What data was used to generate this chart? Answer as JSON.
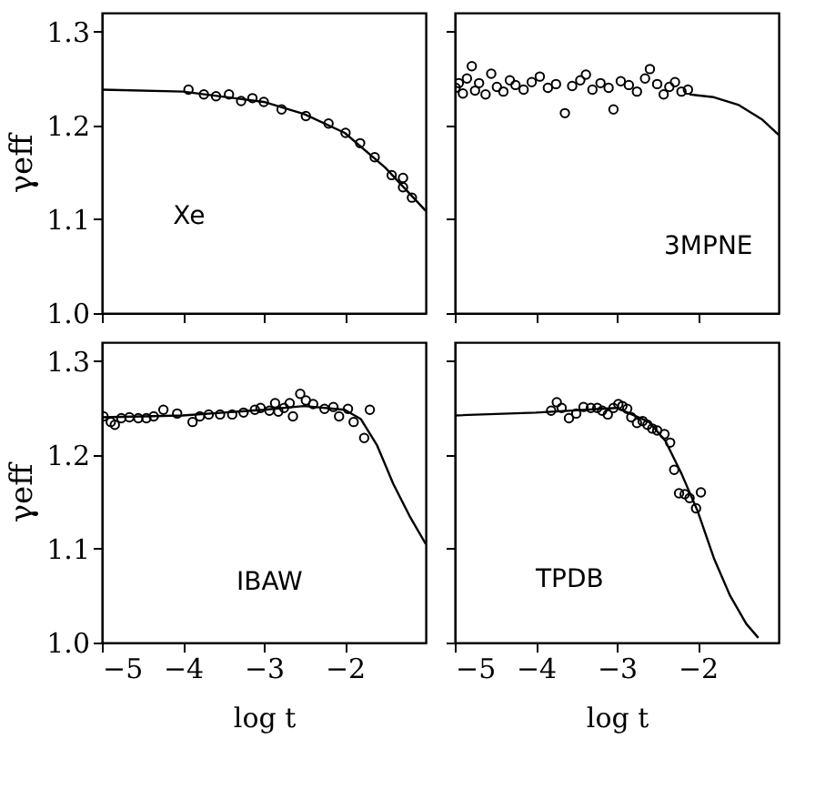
{
  "chart_data": [
    {
      "type": "scatter",
      "ylabel": "γeff",
      "annotations": [
        "Xe"
      ],
      "xlim": [
        -5,
        -1
      ],
      "ylim": [
        1.0,
        1.32
      ],
      "xticks": [
        -5,
        -4,
        -3,
        -2
      ],
      "yticks": [
        {
          "value": 1.0,
          "label": "1.0"
        },
        1.1,
        1.2,
        1.3
      ],
      "tick_labels": "y",
      "grid": false,
      "series": [
        {
          "color": "#000000",
          "marker": "circle",
          "x": [
            -3.93,
            -3.74,
            -3.59,
            -3.43,
            -3.28,
            -3.14,
            -3.0,
            -2.78,
            -2.48,
            -2.2,
            -1.99,
            -1.81,
            -1.63,
            -1.42,
            -1.28,
            -1.28,
            -1.17
          ],
          "values": [
            1.238,
            1.233,
            1.231,
            1.233,
            1.226,
            1.229,
            1.225,
            1.217,
            1.21,
            1.202,
            1.192,
            1.181,
            1.166,
            1.147,
            1.144,
            1.134,
            1.123
          ]
        },
        {
          "type": "line",
          "color": "#000000",
          "marker": "none",
          "x": [
            -5,
            -4,
            -3,
            -2.5,
            -2,
            -1.5,
            -1
          ],
          "values": [
            1.238,
            1.236,
            1.225,
            1.212,
            1.192,
            1.155,
            1.109
          ]
        }
      ]
    },
    {
      "type": "scatter",
      "annotations": [
        "3MPNE"
      ],
      "xlim": [
        -5,
        -1
      ],
      "ylim": [
        1.0,
        1.32
      ],
      "xticks": [
        -5,
        -4,
        -3,
        -2
      ],
      "yticks": [
        1.0,
        1.1,
        1.2,
        1.3
      ],
      "tick_labels": false,
      "grid": false,
      "series": [
        {
          "color": "#000000",
          "marker": "circle",
          "x": [
            -4.99,
            -4.95,
            -4.9,
            -4.85,
            -4.79,
            -4.75,
            -4.7,
            -4.62,
            -4.55,
            -4.48,
            -4.4,
            -4.32,
            -4.25,
            -4.15,
            -4.05,
            -3.95,
            -3.85,
            -3.75,
            -3.64,
            -3.55,
            -3.45,
            -3.38,
            -3.3,
            -3.2,
            -3.1,
            -3.04,
            -2.95,
            -2.85,
            -2.75,
            -2.65,
            -2.59,
            -2.5,
            -2.42,
            -2.35,
            -2.28,
            -2.2,
            -2.12
          ],
          "values": [
            1.24,
            1.245,
            1.234,
            1.25,
            1.263,
            1.237,
            1.245,
            1.233,
            1.255,
            1.241,
            1.236,
            1.248,
            1.243,
            1.238,
            1.246,
            1.252,
            1.24,
            1.244,
            1.213,
            1.242,
            1.248,
            1.254,
            1.238,
            1.245,
            1.24,
            1.217,
            1.247,
            1.243,
            1.236,
            1.25,
            1.26,
            1.244,
            1.233,
            1.241,
            1.246,
            1.236,
            1.238
          ]
        },
        {
          "type": "line",
          "color": "#000000",
          "marker": "none",
          "x": [
            -2.1,
            -1.8,
            -1.5,
            -1.2,
            -1
          ],
          "values": [
            1.233,
            1.23,
            1.222,
            1.206,
            1.19
          ]
        }
      ]
    },
    {
      "type": "scatter",
      "xlabel": "log t",
      "ylabel": "γeff",
      "annotations": [
        "IBAW"
      ],
      "xlim": [
        -5,
        -1
      ],
      "ylim": [
        1.0,
        1.32
      ],
      "xticks": [
        -5,
        -4,
        -3,
        -2
      ],
      "yticks": [
        {
          "value": 1.0,
          "label": "1.0"
        },
        1.1,
        1.2,
        1.3
      ],
      "grid": false,
      "series": [
        {
          "color": "#000000",
          "marker": "circle",
          "x": [
            -4.98,
            -4.89,
            -4.84,
            -4.76,
            -4.66,
            -4.55,
            -4.45,
            -4.36,
            -4.24,
            -4.07,
            -3.88,
            -3.79,
            -3.68,
            -3.54,
            -3.39,
            -3.25,
            -3.11,
            -3.04,
            -2.93,
            -2.86,
            -2.82,
            -2.75,
            -2.68,
            -2.64,
            -2.55,
            -2.48,
            -2.39,
            -2.25,
            -2.14,
            -2.07,
            -1.96,
            -1.89,
            -1.76,
            -1.69
          ],
          "values": [
            1.241,
            1.235,
            1.232,
            1.239,
            1.24,
            1.239,
            1.239,
            1.241,
            1.248,
            1.244,
            1.235,
            1.241,
            1.243,
            1.243,
            1.243,
            1.245,
            1.248,
            1.25,
            1.247,
            1.255,
            1.246,
            1.25,
            1.255,
            1.241,
            1.265,
            1.258,
            1.254,
            1.249,
            1.251,
            1.241,
            1.249,
            1.235,
            1.218,
            1.248
          ]
        },
        {
          "type": "line",
          "color": "#000000",
          "marker": "none",
          "x": [
            -5,
            -4,
            -3,
            -2.5,
            -2,
            -1.8,
            -1.6,
            -1.4,
            -1.2,
            -1
          ],
          "values": [
            1.24,
            1.242,
            1.248,
            1.252,
            1.248,
            1.238,
            1.21,
            1.169,
            1.135,
            1.105
          ]
        }
      ]
    },
    {
      "type": "scatter",
      "xlabel": "log t",
      "annotations": [
        "TPDB"
      ],
      "xlim": [
        -5,
        -1
      ],
      "ylim": [
        1.0,
        1.32
      ],
      "xticks": [
        -5,
        -4,
        -3,
        -2
      ],
      "yticks": [
        1.0,
        1.1,
        1.2,
        1.3
      ],
      "tick_labels": "x",
      "grid": false,
      "series": [
        {
          "color": "#000000",
          "marker": "circle",
          "x": [
            -3.81,
            -3.74,
            -3.68,
            -3.59,
            -3.5,
            -3.41,
            -3.32,
            -3.24,
            -3.18,
            -3.11,
            -3.04,
            -2.98,
            -2.93,
            -2.87,
            -2.82,
            -2.75,
            -2.68,
            -2.62,
            -2.56,
            -2.5,
            -2.41,
            -2.34,
            -2.29,
            -2.23,
            -2.16,
            -2.1,
            -2.02,
            -1.96
          ],
          "values": [
            1.247,
            1.256,
            1.25,
            1.239,
            1.244,
            1.251,
            1.25,
            1.25,
            1.247,
            1.243,
            1.25,
            1.254,
            1.252,
            1.249,
            1.24,
            1.234,
            1.236,
            1.232,
            1.228,
            1.226,
            1.222,
            1.213,
            1.184,
            1.159,
            1.158,
            1.154,
            1.143,
            1.16
          ]
        },
        {
          "type": "line",
          "color": "#000000",
          "marker": "none",
          "x": [
            -5,
            -4,
            -3,
            -2.6,
            -2.4,
            -2.2,
            -2,
            -1.8,
            -1.6,
            -1.4,
            -1.25
          ],
          "values": [
            1.242,
            1.245,
            1.25,
            1.235,
            1.215,
            1.18,
            1.14,
            1.09,
            1.05,
            1.02,
            1.005
          ]
        }
      ]
    }
  ]
}
